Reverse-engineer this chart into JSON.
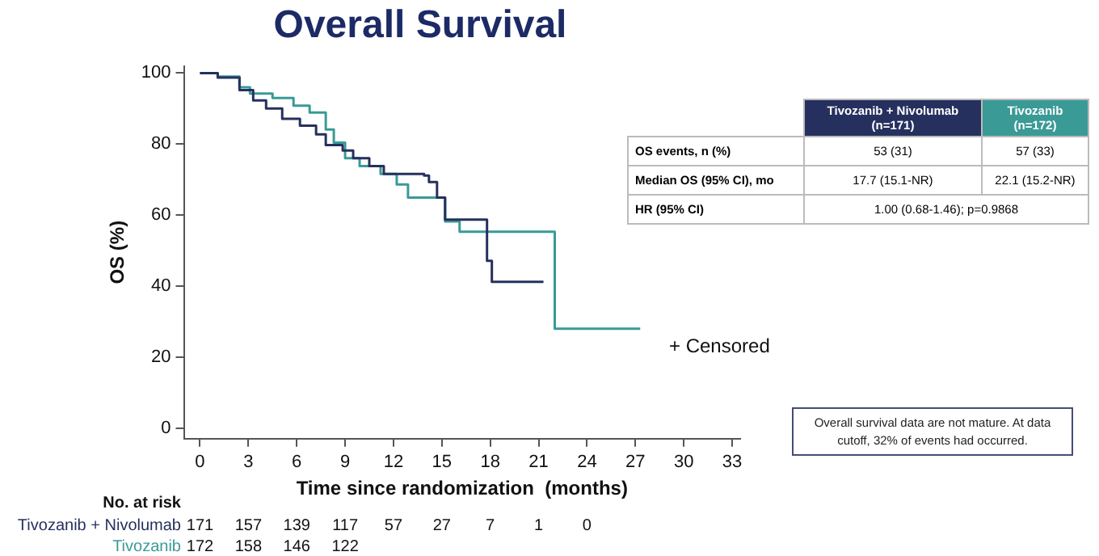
{
  "chart_data": {
    "type": "step",
    "title": "Overall Survival",
    "xlabel": "Time since randomization  (months)",
    "ylabel": "OS (%)",
    "xlim": [
      -1,
      33.5
    ],
    "xticks": [
      0,
      3,
      6,
      9,
      12,
      15,
      18,
      21,
      24,
      27,
      30,
      33
    ],
    "ylim": [
      -3,
      102
    ],
    "yticks": [
      0,
      20,
      40,
      60,
      80,
      100
    ],
    "grid": false,
    "legend": false,
    "series": [
      {
        "name": "Tivozanib + Nivolumab",
        "color": "#26305e",
        "x": [
          0,
          1.1,
          2.45,
          3.3,
          4.1,
          5.1,
          6.2,
          7.2,
          7.8,
          8.85,
          9.5,
          10.5,
          11.4,
          13.9,
          14.2,
          14.7,
          15.2,
          17.6,
          17.8,
          18.1,
          21.3
        ],
        "values": [
          100,
          98.7,
          95.2,
          92.3,
          90,
          87.1,
          85.2,
          82.7,
          79.7,
          78.2,
          76,
          73.8,
          71.6,
          71.1,
          69.3,
          64.9,
          58.7,
          58.7,
          47.1,
          41.2,
          41.2
        ]
      },
      {
        "name": "Tivozanib",
        "color": "#3a9a96",
        "x": [
          0,
          1.1,
          2.45,
          3.1,
          4.5,
          5.8,
          6.8,
          7.8,
          8.3,
          9.0,
          9.9,
          11.2,
          12.2,
          12.9,
          14.6,
          15.2,
          16.1,
          22.0,
          27.3
        ],
        "values": [
          100,
          99,
          96,
          94.2,
          93,
          90.8,
          88.9,
          84.1,
          80.4,
          76,
          73.8,
          71.6,
          68.6,
          64.9,
          64.9,
          58.2,
          55.3,
          28,
          28
        ]
      }
    ],
    "annotations": [
      "Tivozanib + Nivolumab (n=171)",
      "Tivozanib (n=172)",
      "OS events, n (%)",
      "53 (31)",
      "57 (33)",
      "Median OS (95% CI), mo",
      "17.7 (15.1-NR)",
      "22.1 (15.2-NR)",
      "HR (95% CI)",
      "1.00 (0.68-1.46); p=0.9868",
      "+ Censored",
      "Overall survival data are not mature. At data cutoff, 32% of events had occurred.",
      "No. at risk",
      "171",
      "157",
      "139",
      "117",
      "57",
      "27",
      "7",
      "1",
      "0",
      "172",
      "158",
      "146",
      "122"
    ]
  }
}
